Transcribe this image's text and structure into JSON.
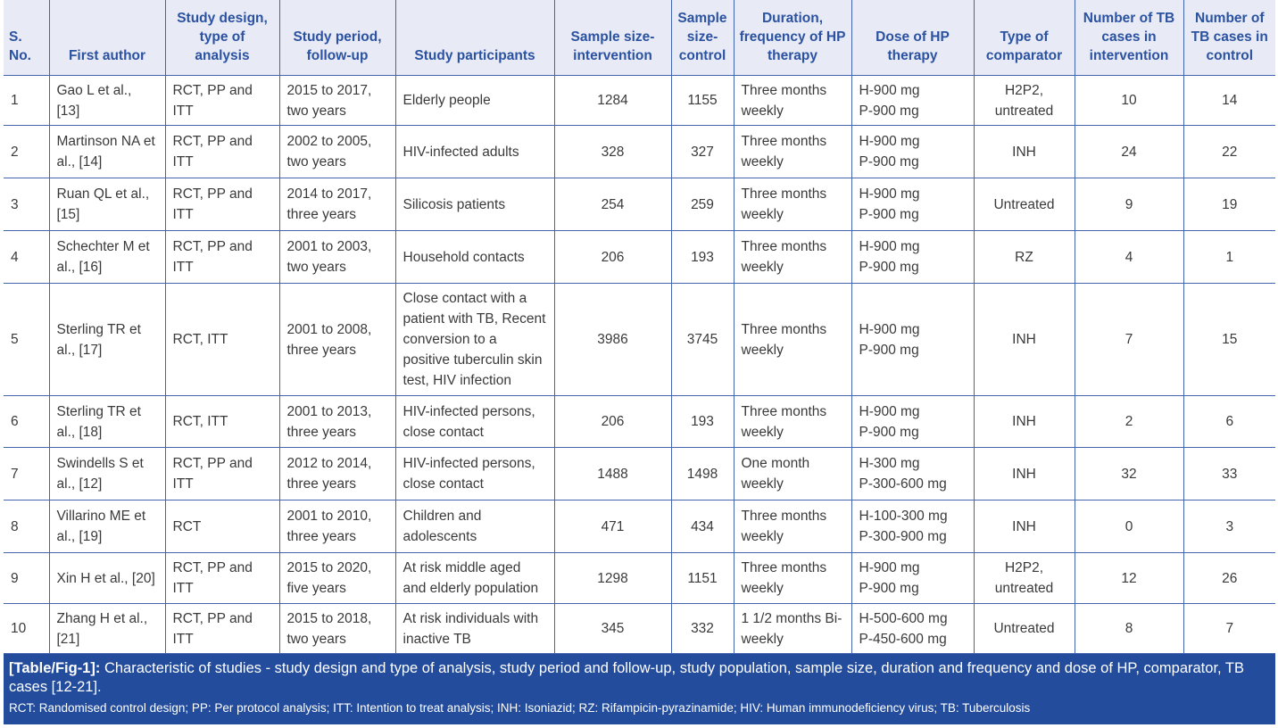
{
  "headers": [
    "S. No.",
    "First author",
    "Study design, type of analysis",
    "Study period, follow-up",
    "Study participants",
    "Sample size-intervention",
    "Sample size-control",
    "Duration, frequency of HP therapy",
    "Dose of HP therapy",
    "Type of comparator",
    "Number of TB cases in intervention",
    "Number of TB cases in control"
  ],
  "rows": [
    [
      "1",
      "Gao L et al., [13]",
      "RCT, PP and ITT",
      "2015 to 2017, two years",
      "Elderly people",
      "1284",
      "1155",
      "Three months weekly",
      "H-900 mg\nP-900 mg",
      "H2P2, untreated",
      "10",
      "14"
    ],
    [
      "2",
      "Martinson NA et al., [14]",
      "RCT, PP and ITT",
      "2002 to 2005, two years",
      "HIV-infected adults",
      "328",
      "327",
      "Three months weekly",
      "H-900 mg\nP-900 mg",
      "INH",
      "24",
      "22"
    ],
    [
      "3",
      "Ruan QL et al., [15]",
      "RCT, PP and ITT",
      "2014 to 2017, three years",
      "Silicosis patients",
      "254",
      "259",
      "Three months weekly",
      "H-900 mg\nP-900 mg",
      "Untreated",
      "9",
      "19"
    ],
    [
      "4",
      "Schechter M et al., [16]",
      "RCT, PP and ITT",
      "2001 to 2003, two years",
      "Household contacts",
      "206",
      "193",
      "Three months weekly",
      "H-900 mg\nP-900 mg",
      "RZ",
      "4",
      "1"
    ],
    [
      "5",
      "Sterling TR et al., [17]",
      "RCT, ITT",
      "2001 to 2008, three years",
      "Close contact with a patient with TB, Recent conversion to a positive tuberculin skin test, HIV infection",
      "3986",
      "3745",
      "Three months weekly",
      "H-900 mg\nP-900 mg",
      "INH",
      "7",
      "15"
    ],
    [
      "6",
      "Sterling TR et al., [18]",
      "RCT, ITT",
      "2001 to 2013, three years",
      "HIV-infected persons, close contact",
      "206",
      "193",
      "Three months weekly",
      "H-900 mg\nP-900 mg",
      "INH",
      "2",
      "6"
    ],
    [
      "7",
      "Swindells S et al., [12]",
      "RCT, PP and ITT",
      "2012 to 2014, three years",
      "HIV-infected persons, close contact",
      "1488",
      "1498",
      "One month weekly",
      "H-300 mg\nP-300-600 mg",
      "INH",
      "32",
      "33"
    ],
    [
      "8",
      "Villarino ME et al., [19]",
      "RCT",
      "2001 to 2010, three years",
      "Children and adolescents",
      "471",
      "434",
      "Three months weekly",
      "H-100-300 mg\nP-300-900 mg",
      "INH",
      "0",
      "3"
    ],
    [
      "9",
      "Xin H et al., [20]",
      "RCT, PP and ITT",
      "2015 to 2020, five years",
      "At risk middle aged and elderly population",
      "1298",
      "1151",
      "Three months weekly",
      "H-900 mg\nP-900 mg",
      "H2P2, untreated",
      "12",
      "26"
    ],
    [
      "10",
      "Zhang H et al., [21]",
      "RCT, PP and ITT",
      "2015 to 2018, two years",
      "At risk individuals with inactive TB",
      "345",
      "332",
      "1 1/2 months Bi-weekly",
      "H-500-600 mg\nP-450-600 mg",
      "Untreated",
      "8",
      "7"
    ]
  ],
  "caption": {
    "label": "[Table/Fig-1]:",
    "text": " Characteristic of studies - study design and type of analysis, study period and follow-up, study population, sample size, duration and frequency and dose of HP, comparator, TB cases [12-21].",
    "abbreviations": "RCT: Randomised control design; PP: Per protocol analysis; ITT: Intention to treat analysis; INH: Isoniazid; RZ: Rifampicin-pyrazinamide; HIV: Human immunodeficiency virus; TB: Tuberculosis"
  }
}
